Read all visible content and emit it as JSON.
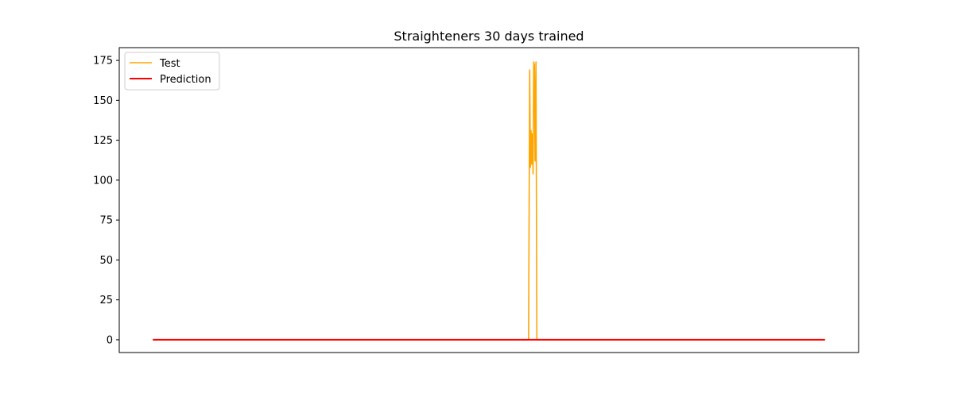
{
  "chart_data": {
    "type": "line",
    "title": "Straighteners 30 days trained",
    "xlabel": "",
    "ylabel": "",
    "x_ticks_visible": false,
    "grid": false,
    "legend_position": "upper-left",
    "ylim": [
      -8,
      183
    ],
    "xlim": [
      -15,
      315
    ],
    "yticks": [
      0,
      25,
      50,
      75,
      100,
      125,
      150,
      175
    ],
    "series": [
      {
        "name": "Test",
        "color": "#ffa500",
        "x": [
          0,
          167.7,
          168.2,
          168.5,
          168.8,
          169.1,
          169.4,
          169.7,
          170.0,
          170.3,
          170.6,
          171.0,
          171.4,
          171.7,
          300
        ],
        "y": [
          0,
          0,
          169,
          108,
          131,
          110,
          129,
          104,
          174,
          172,
          112,
          174,
          0,
          0,
          0
        ]
      },
      {
        "name": "Prediction",
        "color": "#ff0000",
        "x": [
          0,
          300
        ],
        "y": [
          0,
          0
        ]
      }
    ]
  }
}
